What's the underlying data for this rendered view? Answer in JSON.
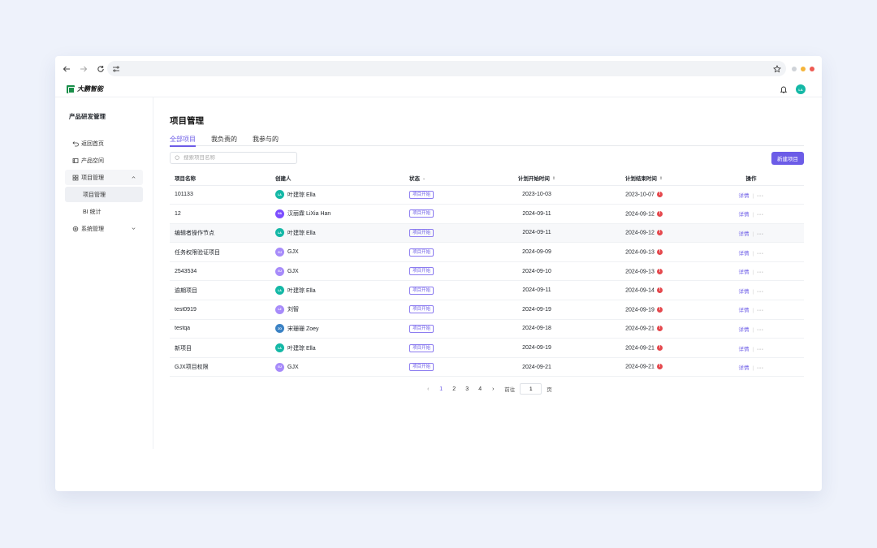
{
  "browser": {
    "dots": [
      "#cfd3d8",
      "#f5b43a",
      "#ee5a52"
    ]
  },
  "app": {
    "logo_text": "大鹏智能",
    "user_avatar": "LA"
  },
  "sidebar": {
    "title": "产品研发管理",
    "items": [
      {
        "label": "返回首页",
        "icon": "return-icon"
      },
      {
        "label": "产品空间",
        "icon": "product-space-icon"
      },
      {
        "label": "项目管理",
        "icon": "grid-icon"
      },
      {
        "label": "项目管理"
      },
      {
        "label": "BI 统计"
      },
      {
        "label": "系统管理",
        "icon": "gear-icon"
      }
    ]
  },
  "main": {
    "title": "项目管理",
    "tabs": [
      "全部项目",
      "我负责的",
      "我参与的"
    ],
    "search_placeholder": "搜索项目名称",
    "new_button": "新建项目",
    "columns": [
      "项目名称",
      "创建人",
      "状态",
      "计划开始时间",
      "计划结束时间",
      "操作"
    ],
    "rows": [
      {
        "name": "101133",
        "creator": "叶建琮 Ella",
        "avatar": "LA",
        "avatar_color": "#14b8a6",
        "status": "项目开始",
        "start": "2023-10-03",
        "end": "2023-10-07",
        "op": "详情",
        "more": "···"
      },
      {
        "name": "12",
        "creator": "汉丽霖 LiXia Han",
        "avatar": "HA",
        "avatar_color": "#7c4dff",
        "status": "项目开始",
        "start": "2024-09-11",
        "end": "2024-09-12",
        "op": "详情",
        "more": "···"
      },
      {
        "name": "编辑者操作节点",
        "creator": "叶建琮 Ella",
        "avatar": "LA",
        "avatar_color": "#14b8a6",
        "status": "项目开始",
        "start": "2024-09-11",
        "end": "2024-09-12",
        "op": "详情",
        "more": "···"
      },
      {
        "name": "任务权限验证项目",
        "creator": "GJX",
        "avatar": "GJ",
        "avatar_color": "#a78bfa",
        "status": "项目开始",
        "start": "2024-09-09",
        "end": "2024-09-13",
        "op": "详情",
        "more": "···"
      },
      {
        "name": "2543534",
        "creator": "GJX",
        "avatar": "GJ",
        "avatar_color": "#a78bfa",
        "status": "项目开始",
        "start": "2024-09-10",
        "end": "2024-09-13",
        "op": "详情",
        "more": "···"
      },
      {
        "name": "逾期项目",
        "creator": "叶建琮 Ella",
        "avatar": "LA",
        "avatar_color": "#14b8a6",
        "status": "项目开始",
        "start": "2024-09-11",
        "end": "2024-09-14",
        "op": "详情",
        "more": "···"
      },
      {
        "name": "test0919",
        "creator": "刘智",
        "avatar": "LZ",
        "avatar_color": "#a78bfa",
        "status": "项目开始",
        "start": "2024-09-19",
        "end": "2024-09-19",
        "op": "详情",
        "more": "···"
      },
      {
        "name": "testqa",
        "creator": "宋珊珊 Zoey",
        "avatar": "ZO",
        "avatar_color": "#3b82c4",
        "status": "项目开始",
        "start": "2024-09-18",
        "end": "2024-09-21",
        "op": "详情",
        "more": "···"
      },
      {
        "name": "新项目",
        "creator": "叶建琮 Ella",
        "avatar": "LA",
        "avatar_color": "#14b8a6",
        "status": "项目开始",
        "start": "2024-09-19",
        "end": "2024-09-21",
        "op": "详情",
        "more": "···"
      },
      {
        "name": "GJX项目权限",
        "creator": "GJX",
        "avatar": "GJ",
        "avatar_color": "#a78bfa",
        "status": "项目开始",
        "start": "2024-09-21",
        "end": "2024-09-21",
        "op": "详情",
        "more": "···"
      }
    ],
    "pagination": {
      "pages": [
        "1",
        "2",
        "3",
        "4"
      ],
      "current": "1",
      "goto_label": "前往",
      "goto_value": "1",
      "page_suffix": "页"
    }
  },
  "colors": {
    "accent": "#6c5ce7",
    "warn": "#e5484d"
  }
}
